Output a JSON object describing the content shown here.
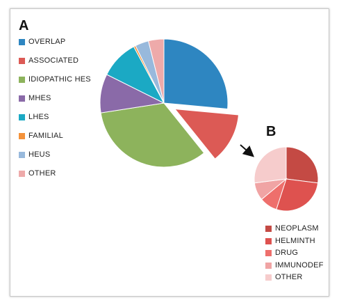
{
  "chart_data": [
    {
      "panel": "A",
      "type": "pie",
      "title": "",
      "exploded_slice": "ASSOCIATED",
      "series": [
        {
          "name": "OVERLAP",
          "value": 27,
          "color": "#2e86c1"
        },
        {
          "name": "ASSOCIATED",
          "value": 13,
          "color": "#dc5a55"
        },
        {
          "name": "IDIOPATHIC HES",
          "value": 34,
          "color": "#8db35c"
        },
        {
          "name": "MHES",
          "value": 10,
          "color": "#8a6aa8"
        },
        {
          "name": "LHES",
          "value": 10,
          "color": "#1ba9c4"
        },
        {
          "name": "FAMILIAL",
          "value": 0.5,
          "color": "#f4923a"
        },
        {
          "name": "HEUS",
          "value": 3.5,
          "color": "#98b9dc"
        },
        {
          "name": "OTHER",
          "value": 4,
          "color": "#eeaaaa"
        }
      ],
      "legend_position": "left"
    },
    {
      "panel": "B",
      "type": "pie",
      "title": "",
      "series": [
        {
          "name": "NEOPLASM",
          "value": 27,
          "color": "#c44a44"
        },
        {
          "name": "HELMINTH",
          "value": 28,
          "color": "#de524f"
        },
        {
          "name": "DRUG",
          "value": 9,
          "color": "#ee6f6c"
        },
        {
          "name": "IMMUNODEF",
          "value": 9,
          "color": "#f0a4a4"
        },
        {
          "name": "OTHER",
          "value": 27,
          "color": "#f6cccc"
        }
      ],
      "legend_position": "bottom-right"
    }
  ]
}
